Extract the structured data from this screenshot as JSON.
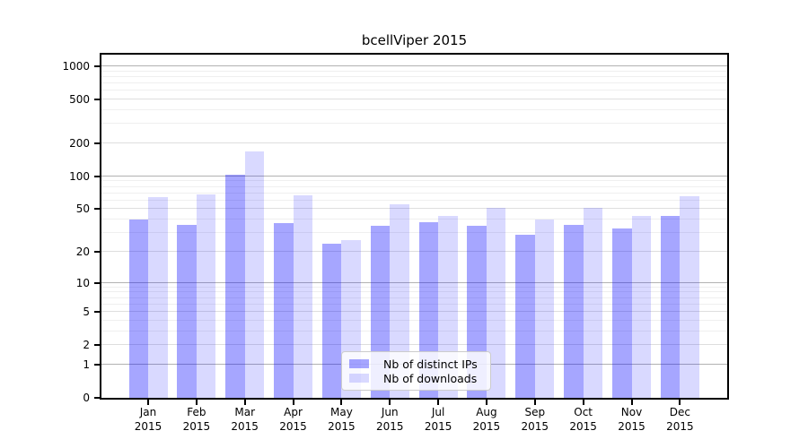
{
  "chart_data": {
    "type": "bar",
    "title": "bcellViper 2015",
    "categories": [
      "Jan 2015",
      "Feb 2015",
      "Mar 2015",
      "Apr 2015",
      "May 2015",
      "Jun 2015",
      "Jul 2015",
      "Aug 2015",
      "Sep 2015",
      "Oct 2015",
      "Nov 2015",
      "Dec 2015"
    ],
    "series": [
      {
        "name": "Nb of distinct IPs",
        "color": "rgba(0,0,255,0.35)",
        "color_hex": "#a6a6fa",
        "values": [
          40,
          36,
          104,
          37,
          24,
          35,
          38,
          35,
          29,
          36,
          33,
          43
        ]
      },
      {
        "name": "Nb of downloads",
        "color": "rgba(0,0,255,0.15)",
        "color_hex": "#d9d9fb",
        "values": [
          65,
          68,
          170,
          67,
          26,
          55,
          43,
          51,
          40,
          51,
          43,
          66
        ]
      }
    ],
    "xlabel": "",
    "ylabel": "",
    "yscale": "log(1+x)",
    "y_ticks": [
      1000,
      500,
      200,
      100,
      50,
      20,
      10,
      5,
      2,
      1,
      0
    ],
    "ylim": [
      0,
      1270
    ],
    "grid": true,
    "legend_position": "lower center",
    "grid_major_color": "#b2b2b2",
    "grid_mid_color": "#dedede",
    "grid_minor_color": "#efefef"
  }
}
